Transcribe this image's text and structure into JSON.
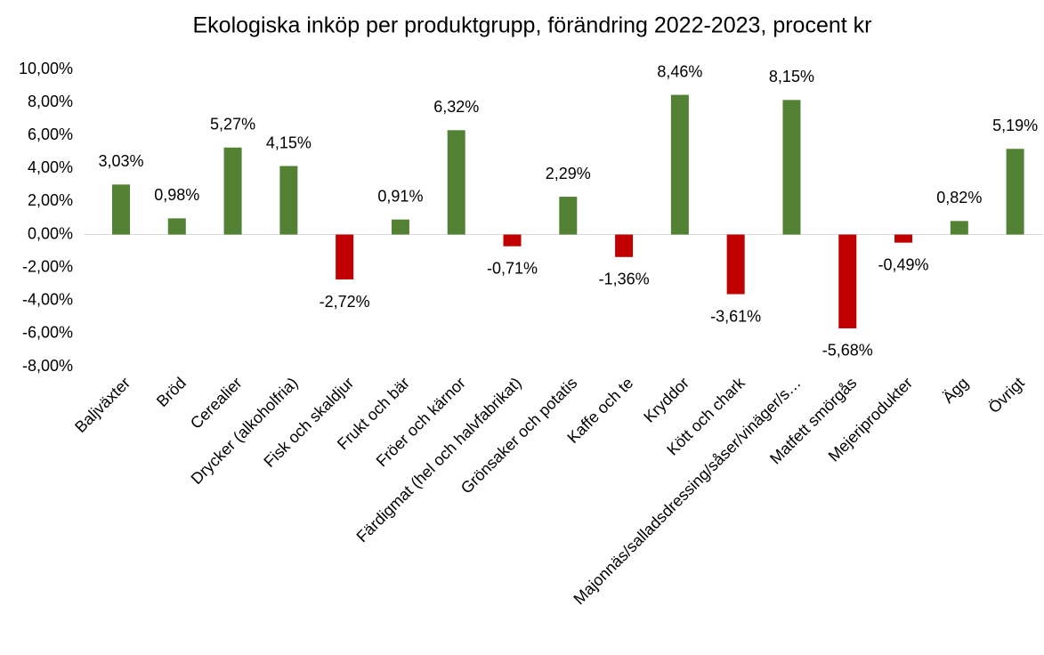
{
  "chart_data": {
    "type": "bar",
    "title": "Ekologiska inköp per produktgrupp, förändring 2022-2023, procent kr",
    "categories": [
      "Baljväxter",
      "Bröd",
      "Cerealier",
      "Drycker (alkoholfria)",
      "Fisk och skaldjur",
      "Frukt och bär",
      "Fröer och kärnor",
      "Färdigmat (hel och halvfabrikat)",
      "Grönsaker och potatis",
      "Kaffe och te",
      "Kryddor",
      "Kött och chark",
      "Majonnäs/salladsdressing/såser/vinäger/s…",
      "Matfett smörgås",
      "Mejeriprodukter",
      "Ägg",
      "Övrigt"
    ],
    "values": [
      3.03,
      0.98,
      5.27,
      4.15,
      -2.72,
      0.91,
      6.32,
      -0.71,
      2.29,
      -1.36,
      8.46,
      -3.61,
      8.15,
      -5.68,
      -0.49,
      0.82,
      5.19
    ],
    "value_labels": [
      "3,03%",
      "0,98%",
      "5,27%",
      "4,15%",
      "-2,72%",
      "0,91%",
      "6,32%",
      "-0,71%",
      "2,29%",
      "-1,36%",
      "8,46%",
      "-3,61%",
      "8,15%",
      "-5,68%",
      "-0,49%",
      "0,82%",
      "5,19%"
    ],
    "color": "#548235",
    "negative_color": "#c00000",
    "ylim": [
      -8,
      10
    ],
    "yticks": [
      {
        "value": -8,
        "label": "-8,00%"
      },
      {
        "value": -6,
        "label": "-6,00%"
      },
      {
        "value": -4,
        "label": "-4,00%"
      },
      {
        "value": -2,
        "label": "-2,00%"
      },
      {
        "value": 0,
        "label": "0,00%"
      },
      {
        "value": 2,
        "label": "2,00%"
      },
      {
        "value": 4,
        "label": "4,00%"
      },
      {
        "value": 6,
        "label": "6,00%"
      },
      {
        "value": 8,
        "label": "8,00%"
      },
      {
        "value": 10,
        "label": "10,00%"
      }
    ],
    "grid": false
  }
}
